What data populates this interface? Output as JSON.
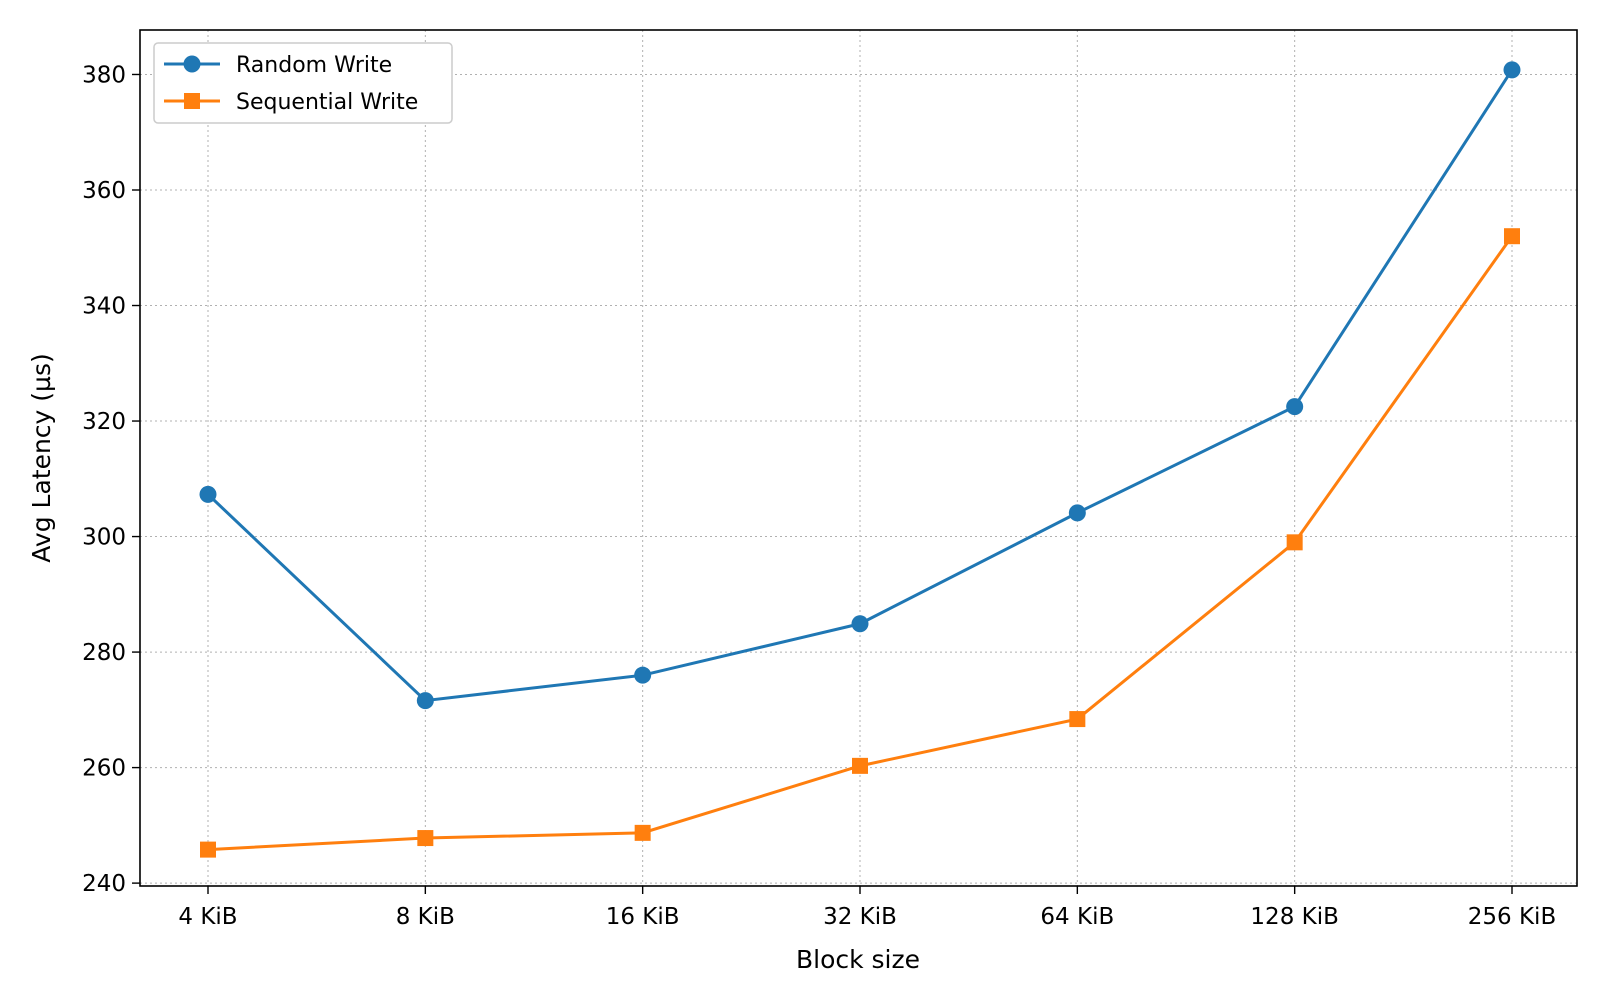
{
  "chart_data": {
    "type": "line",
    "title": "",
    "xlabel": "Block size",
    "ylabel": "Avg Latency (µs)",
    "categories": [
      "4 KiB",
      "8 KiB",
      "16 KiB",
      "32 KiB",
      "64 KiB",
      "128 KiB",
      "256 KiB"
    ],
    "ylim": [
      239.5,
      387.7
    ],
    "yticks": [
      240,
      260,
      280,
      300,
      320,
      340,
      360,
      380
    ],
    "grid": true,
    "legend_position": "top-left",
    "series": [
      {
        "name": "Random Write",
        "color": "#1f77b4",
        "marker": "circle",
        "values": [
          307.3,
          271.6,
          276.0,
          284.9,
          304.1,
          322.5,
          380.8
        ]
      },
      {
        "name": "Sequential Write",
        "color": "#ff7f0e",
        "marker": "square",
        "values": [
          245.8,
          247.8,
          248.7,
          260.3,
          268.4,
          299.0,
          352.0
        ]
      }
    ]
  }
}
